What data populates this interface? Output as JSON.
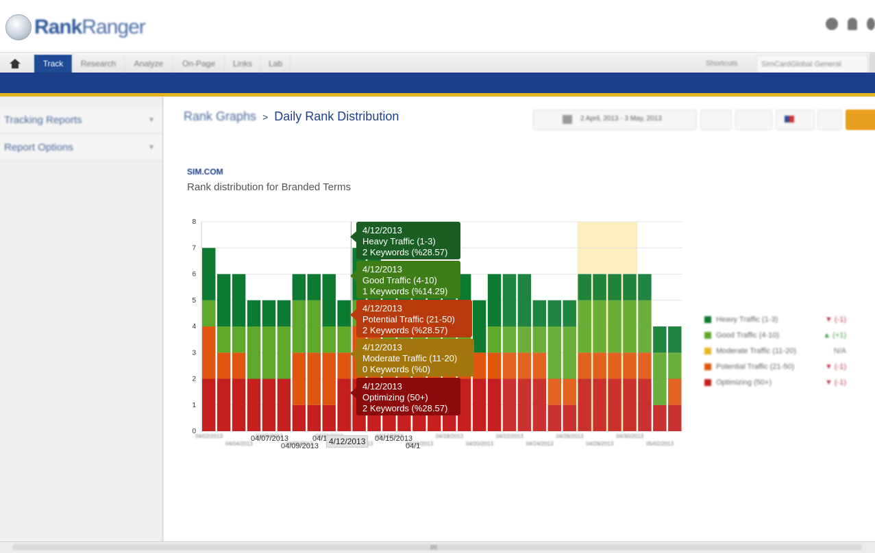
{
  "header": {
    "logo_prefix": "Rank",
    "logo_suffix": "Ranger",
    "icons": [
      "help-icon",
      "user-icon",
      "settings-icon"
    ]
  },
  "nav": {
    "tabs": [
      {
        "label": "Track",
        "active": true
      },
      {
        "label": "Research"
      },
      {
        "label": "Analyze"
      },
      {
        "label": "On-Page"
      },
      {
        "label": "Links"
      },
      {
        "label": "Lab"
      }
    ],
    "shortcuts_label": "Shortcuts",
    "campaign_label": "SimCardGlobal General"
  },
  "sidebar": {
    "items": [
      {
        "label": "Tracking Reports"
      },
      {
        "label": "Report Options"
      }
    ]
  },
  "breadcrumb": {
    "parent": "Rank Graphs",
    "separator": ">",
    "current": "Daily Rank Distribution"
  },
  "toolbar": {
    "date_range": "2 April, 2013 - 3 May, 2013",
    "colors": {
      "accent": "#e8a020"
    }
  },
  "report": {
    "site": "SIM.COM",
    "subtitle": "Rank distribution for Branded Terms"
  },
  "tooltips": [
    {
      "date": "4/12/2013",
      "series": "Heavy Traffic (1-3)",
      "detail": "2 Keywords (%28.57)",
      "color": "#1a5e23"
    },
    {
      "date": "4/12/2013",
      "series": "Good Traffic (4-10)",
      "detail": "1 Keywords (%14.29)",
      "color": "#3e7d17"
    },
    {
      "date": "4/12/2013",
      "series": "Potential Traffic (21-50)",
      "detail": "2 Keywords (%28.57)",
      "color": "#b93a0c"
    },
    {
      "date": "4/12/2013",
      "series": "Moderate Traffic (11-20)",
      "detail": "0 Keywords (%0)",
      "color": "#a2760c"
    },
    {
      "date": "4/12/2013",
      "series": "Optimizing (50+)",
      "detail": "2 Keywords (%28.57)",
      "color": "#8c0c0c"
    }
  ],
  "hover_x_label": "4/12/2013",
  "visible_x_labels": [
    "04/07/2013",
    "04/09/2013",
    "04/1",
    "04/15/2013",
    "04/1"
  ],
  "chart_data": {
    "type": "bar",
    "stacked": true,
    "ylim": [
      0,
      8
    ],
    "y_ticks": [
      0,
      1,
      2,
      3,
      4,
      5,
      6,
      7,
      8
    ],
    "categories": [
      "04/02/2013",
      "04/03/2013",
      "04/04/2013",
      "04/05/2013",
      "04/06/2013",
      "04/07/2013",
      "04/08/2013",
      "04/09/2013",
      "04/10/2013",
      "04/11/2013",
      "04/12/2013",
      "04/13/2013",
      "04/14/2013",
      "04/15/2013",
      "04/16/2013",
      "04/17/2013",
      "04/18/2013",
      "04/19/2013",
      "04/20/2013",
      "04/21/2013",
      "04/22/2013",
      "04/23/2013",
      "04/24/2013",
      "04/25/2013",
      "04/26/2013",
      "04/27/2013",
      "04/28/2013",
      "04/29/2013",
      "04/30/2013",
      "05/01/2013",
      "05/02/2013",
      "05/03/2013"
    ],
    "series": [
      {
        "name": "Optimizing (50+)",
        "color": "#c61f1f",
        "values": [
          2,
          2,
          2,
          2,
          2,
          2,
          1,
          1,
          1,
          2,
          2,
          2,
          2,
          2,
          1,
          2,
          2,
          2,
          2,
          2,
          2,
          2,
          2,
          1,
          1,
          2,
          2,
          2,
          2,
          2,
          1,
          1
        ]
      },
      {
        "name": "Potential Traffic (21-50)",
        "color": "#e0560f",
        "values": [
          2,
          1,
          1,
          0,
          0,
          0,
          2,
          2,
          2,
          1,
          2,
          2,
          1,
          1,
          2,
          1,
          1,
          1,
          1,
          1,
          1,
          1,
          1,
          1,
          1,
          1,
          1,
          1,
          1,
          1,
          0,
          1
        ]
      },
      {
        "name": "Moderate Traffic (11-20)",
        "color": "#e9b923",
        "values": [
          0,
          0,
          0,
          0,
          0,
          0,
          0,
          0,
          0,
          0,
          0,
          0,
          0,
          0,
          0,
          0,
          0,
          0,
          0,
          0,
          0,
          0,
          0,
          0,
          0,
          0,
          0,
          0,
          0,
          0,
          0,
          0
        ]
      },
      {
        "name": "Good Traffic (4-10)",
        "color": "#5ea82a",
        "values": [
          1,
          1,
          1,
          2,
          2,
          2,
          2,
          2,
          1,
          1,
          1,
          1,
          1,
          1,
          1,
          1,
          1,
          1,
          0,
          1,
          1,
          1,
          1,
          2,
          2,
          2,
          2,
          2,
          2,
          2,
          2,
          1
        ]
      },
      {
        "name": "Heavy Traffic (1-3)",
        "color": "#0c7a30",
        "values": [
          2,
          2,
          2,
          1,
          1,
          1,
          1,
          1,
          2,
          1,
          2,
          2,
          2,
          2,
          2,
          2,
          2,
          2,
          2,
          2,
          2,
          2,
          1,
          1,
          1,
          1,
          1,
          1,
          1,
          1,
          1,
          1
        ]
      }
    ],
    "highlight_band": {
      "from": "04/27/2013",
      "to": "04/30/2013",
      "color": "#fdeec0"
    },
    "legend_placement": "right",
    "grid": true
  },
  "legend": [
    {
      "name": "Heavy Traffic (1-3)",
      "color": "#0c7a30",
      "change": "▼ (-1)"
    },
    {
      "name": "Good Traffic (4-10)",
      "color": "#5ea82a",
      "change": "▲ (+1)"
    },
    {
      "name": "Moderate Traffic (11-20)",
      "color": "#e9b923",
      "change": "N/A"
    },
    {
      "name": "Potential Traffic (21-50)",
      "color": "#e0560f",
      "change": "▼ (-1)"
    },
    {
      "name": "Optimizing (50+)",
      "color": "#c61f1f",
      "change": "▼ (-1)"
    }
  ]
}
